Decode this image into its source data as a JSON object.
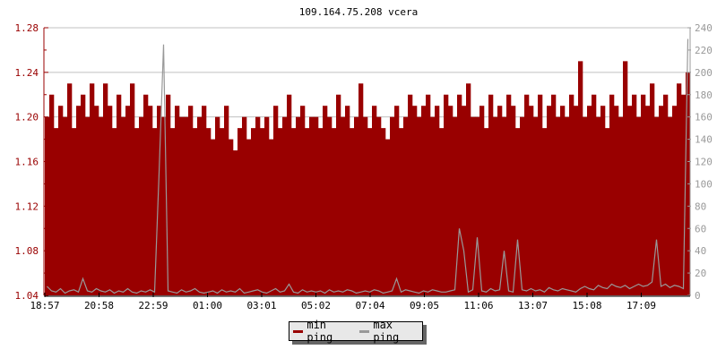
{
  "chart_data": {
    "type": "area",
    "title": "109.164.75.208 vcera",
    "x_tick_labels": [
      "18:57",
      "20:58",
      "22:59",
      "01:00",
      "03:01",
      "05:02",
      "07:04",
      "09:05",
      "11:06",
      "13:07",
      "15:08",
      "17:09"
    ],
    "y_left": {
      "range": [
        1.04,
        1.28
      ],
      "ticks": [
        "1.04",
        "1.06",
        "1.08",
        "1.10",
        "1.12",
        "1.14",
        "1.16",
        "1.18",
        "1.20",
        "1.22",
        "1.24",
        "1.26",
        "1.28"
      ],
      "color": "#990000"
    },
    "y_right": {
      "range": [
        0,
        240
      ],
      "ticks": [
        "0",
        "20",
        "40",
        "60",
        "80",
        "100",
        "120",
        "140",
        "160",
        "180",
        "200",
        "220",
        "240"
      ],
      "color": "#999999"
    },
    "grid": true,
    "legend_placement": "bottom",
    "series": [
      {
        "name": "min ping",
        "color": "#990000",
        "axis": "left",
        "values": [
          1.2,
          1.22,
          1.19,
          1.21,
          1.2,
          1.23,
          1.19,
          1.21,
          1.22,
          1.2,
          1.23,
          1.21,
          1.2,
          1.23,
          1.21,
          1.19,
          1.22,
          1.2,
          1.21,
          1.23,
          1.19,
          1.2,
          1.22,
          1.21,
          1.19,
          1.21,
          1.2,
          1.22,
          1.19,
          1.21,
          1.2,
          1.2,
          1.21,
          1.19,
          1.2,
          1.21,
          1.19,
          1.18,
          1.2,
          1.19,
          1.21,
          1.18,
          1.17,
          1.19,
          1.2,
          1.18,
          1.19,
          1.2,
          1.19,
          1.2,
          1.18,
          1.21,
          1.19,
          1.2,
          1.22,
          1.19,
          1.2,
          1.21,
          1.19,
          1.2,
          1.2,
          1.19,
          1.21,
          1.2,
          1.19,
          1.22,
          1.2,
          1.21,
          1.19,
          1.2,
          1.23,
          1.2,
          1.19,
          1.21,
          1.2,
          1.19,
          1.18,
          1.2,
          1.21,
          1.19,
          1.2,
          1.22,
          1.21,
          1.2,
          1.21,
          1.22,
          1.2,
          1.21,
          1.19,
          1.22,
          1.21,
          1.2,
          1.22,
          1.21,
          1.23,
          1.2,
          1.2,
          1.21,
          1.19,
          1.22,
          1.2,
          1.21,
          1.2,
          1.22,
          1.21,
          1.19,
          1.2,
          1.22,
          1.21,
          1.2,
          1.22,
          1.19,
          1.21,
          1.22,
          1.2,
          1.21,
          1.2,
          1.22,
          1.21,
          1.25,
          1.2,
          1.21,
          1.22,
          1.2,
          1.21,
          1.19,
          1.22,
          1.21,
          1.2,
          1.25,
          1.21,
          1.22,
          1.2,
          1.22,
          1.21,
          1.23,
          1.2,
          1.21,
          1.22,
          1.2,
          1.21,
          1.23,
          1.22,
          1.24
        ]
      },
      {
        "name": "max ping",
        "color": "#999999",
        "axis": "right",
        "values": [
          8,
          4,
          3,
          6,
          2,
          4,
          5,
          3,
          15,
          4,
          3,
          6,
          4,
          3,
          5,
          2,
          4,
          3,
          6,
          3,
          2,
          4,
          3,
          5,
          3,
          110,
          225,
          4,
          3,
          2,
          5,
          3,
          4,
          6,
          3,
          2,
          3,
          4,
          2,
          5,
          3,
          4,
          3,
          6,
          2,
          3,
          4,
          5,
          3,
          2,
          4,
          6,
          3,
          4,
          10,
          3,
          2,
          5,
          3,
          4,
          3,
          4,
          2,
          5,
          3,
          4,
          3,
          5,
          4,
          2,
          3,
          4,
          3,
          5,
          4,
          2,
          3,
          4,
          15,
          3,
          5,
          4,
          3,
          2,
          4,
          3,
          5,
          4,
          3,
          3,
          4,
          5,
          60,
          40,
          3,
          5,
          52,
          4,
          3,
          6,
          4,
          5,
          40,
          4,
          3,
          50,
          5,
          4,
          6,
          4,
          5,
          3,
          7,
          5,
          4,
          6,
          5,
          4,
          3,
          6,
          8,
          6,
          5,
          9,
          7,
          6,
          10,
          8,
          7,
          9,
          6,
          8,
          10,
          8,
          9,
          12,
          50,
          8,
          10,
          7,
          9,
          8,
          6,
          230
        ]
      }
    ]
  }
}
